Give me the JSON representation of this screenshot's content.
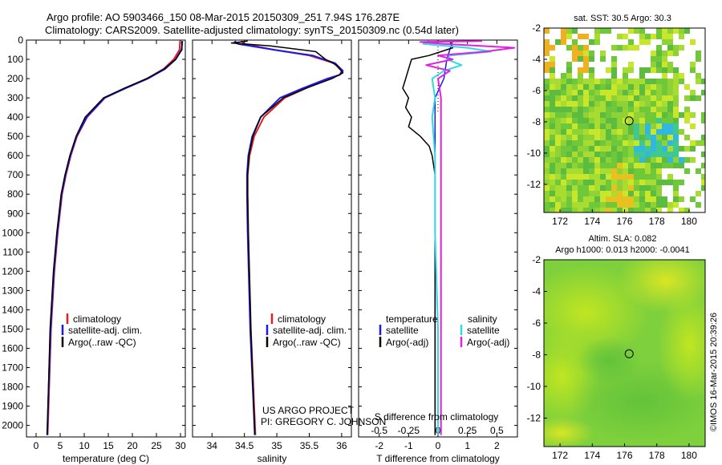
{
  "figure": {
    "title_line1": "Argo profile: AO 5903466_150 08-Mar-2015 20150309_251 7.94S 176.287E",
    "title_line2": "Climatology: CARS2009. Satellite-adjusted climatology: synTS_20150309.nc (0.54d later)",
    "credit": "©IMOS 16-Mar-2015 20:39:26",
    "project_line1": "US ARGO PROJECT",
    "project_line2": "PI: GREGORY C. JOHNSON"
  },
  "colors": {
    "climatology": "#e02020",
    "satellite": "#1a1aee",
    "argo": "#000000",
    "satellite_s": "#30d8e8",
    "argo_s": "#e020e0"
  },
  "chart_data": [
    {
      "type": "line",
      "name": "temperature",
      "xlabel": "temperature (deg C)",
      "ylabel": "",
      "xlim": [
        -2,
        31
      ],
      "ylim": [
        2060,
        0
      ],
      "xticks": [
        0,
        5,
        10,
        15,
        20,
        25,
        30
      ],
      "xtick_labels": [
        "0",
        "5",
        "10",
        "15",
        "20",
        "25",
        "30"
      ],
      "yticks": [
        0,
        100,
        200,
        300,
        400,
        500,
        600,
        700,
        800,
        900,
        1000,
        1100,
        1200,
        1300,
        1400,
        1500,
        1600,
        1700,
        1800,
        1900,
        2000
      ],
      "ytick_labels": [
        "0",
        "100",
        "200",
        "300",
        "400",
        "500",
        "600",
        "700",
        "800",
        "900",
        "1000",
        "1100",
        "1200",
        "1300",
        "1400",
        "1500",
        "1600",
        "1700",
        "1800",
        "1900",
        "2000"
      ],
      "legend": [
        "climatology",
        "satellite-adj. clim.",
        "Argo(..raw -QC)"
      ],
      "series": [
        {
          "name": "climatology",
          "pressure": [
            5,
            50,
            100,
            150,
            200,
            250,
            300,
            400,
            500,
            600,
            700,
            800,
            1000,
            1200,
            1500,
            2050
          ],
          "values": [
            29.9,
            29.8,
            28.6,
            26.5,
            23.0,
            18.5,
            14.3,
            10.6,
            8.5,
            7.2,
            6.2,
            5.4,
            4.5,
            3.8,
            3.1,
            2.4
          ]
        },
        {
          "name": "satellite",
          "pressure": [
            5,
            50,
            100,
            150,
            200,
            250,
            300,
            400,
            500,
            600,
            700,
            800,
            1000,
            1200,
            1500,
            2050
          ],
          "values": [
            30.4,
            30.2,
            29.0,
            26.8,
            23.2,
            18.6,
            14.2,
            10.5,
            8.4,
            7.1,
            6.1,
            5.3,
            4.4,
            3.7,
            3.0,
            2.3
          ]
        },
        {
          "name": "argo",
          "pressure": [
            5,
            50,
            100,
            150,
            200,
            250,
            300,
            400,
            500,
            600,
            700,
            800,
            1000,
            1200,
            1500,
            2050
          ],
          "values": [
            30.3,
            30.3,
            29.0,
            26.6,
            23.0,
            18.3,
            14.0,
            10.2,
            8.3,
            7.0,
            6.0,
            5.2,
            4.3,
            3.6,
            2.9,
            2.3
          ]
        }
      ]
    },
    {
      "type": "line",
      "name": "salinity",
      "xlabel": "salinity",
      "ylabel": "",
      "xlim": [
        33.7,
        36.15
      ],
      "ylim": [
        2060,
        0
      ],
      "xticks": [
        34,
        34.5,
        35,
        35.5,
        36
      ],
      "xtick_labels": [
        "34",
        "34.5",
        "35",
        "35.5",
        "36"
      ],
      "legend": [
        "climatology",
        "satellite-adj. clim.",
        "Argo(..raw -QC)"
      ],
      "series": [
        {
          "name": "climatology",
          "pressure": [
            5,
            20,
            50,
            80,
            120,
            160,
            180,
            200,
            250,
            300,
            400,
            500,
            600,
            700,
            800,
            1000,
            1500,
            2050
          ],
          "values": [
            34.45,
            34.5,
            34.95,
            35.5,
            35.88,
            36.0,
            35.97,
            35.8,
            35.45,
            35.12,
            34.8,
            34.65,
            34.58,
            34.55,
            34.55,
            34.56,
            34.6,
            34.67
          ]
        },
        {
          "name": "satellite",
          "pressure": [
            5,
            20,
            50,
            80,
            120,
            160,
            180,
            200,
            250,
            300,
            400,
            500,
            600,
            700,
            800,
            1000,
            1500,
            2050
          ],
          "values": [
            34.35,
            34.4,
            34.95,
            35.55,
            35.9,
            36.02,
            35.97,
            35.78,
            35.4,
            35.05,
            34.75,
            34.62,
            34.56,
            34.54,
            34.54,
            34.55,
            34.59,
            34.66
          ]
        },
        {
          "name": "argo",
          "pressure": [
            5,
            15,
            30,
            60,
            100,
            130,
            170,
            200,
            250,
            300,
            400,
            500,
            600,
            700,
            800,
            1000,
            1500,
            2050
          ],
          "values": [
            34.55,
            34.3,
            34.9,
            35.6,
            35.75,
            35.92,
            36.02,
            35.85,
            35.45,
            35.1,
            34.75,
            34.63,
            34.57,
            34.55,
            34.55,
            34.56,
            34.6,
            34.66
          ]
        }
      ]
    },
    {
      "type": "line",
      "name": "difference",
      "xlabel": "T difference from climatology",
      "top_xlabel": "S difference from climatology",
      "xlim": [
        -2.7,
        2.7
      ],
      "ylim": [
        2060,
        0
      ],
      "xticks": [
        -2,
        -1,
        0,
        1,
        2
      ],
      "xtick_labels": [
        "-2",
        "-1",
        "0",
        "1",
        "2"
      ],
      "s_xticks": [
        -2,
        -1,
        0,
        1,
        2
      ],
      "s_xtick_labels": [
        "-0.5",
        "-0.25",
        "0",
        "0.25",
        "0.5"
      ],
      "legend_t_title": "temperature",
      "legend_s_title": "salinity",
      "legend": [
        "satellite",
        "Argo(-adj)",
        "satellite",
        "Argo(-adj)"
      ],
      "series": [
        {
          "name": "T satellite",
          "pressure": [
            5,
            50,
            100,
            200,
            300,
            400,
            500,
            600,
            800,
            1000,
            1500,
            2050
          ],
          "values": [
            0.5,
            0.4,
            0.3,
            0.2,
            -0.1,
            -0.1,
            -0.1,
            -0.1,
            -0.1,
            -0.1,
            -0.1,
            -0.1
          ]
        },
        {
          "name": "T argo",
          "pressure": [
            5,
            40,
            80,
            100,
            150,
            200,
            250,
            300,
            350,
            400,
            450,
            500,
            550,
            600,
            700,
            800,
            1000,
            1500,
            2050
          ],
          "values": [
            0.4,
            0.5,
            -0.3,
            -0.9,
            -1.0,
            -1.1,
            -1.2,
            -1.0,
            -1.1,
            -0.9,
            -1.0,
            -0.6,
            -0.3,
            -0.2,
            -0.1,
            -0.1,
            -0.1,
            -0.1,
            -0.1
          ]
        },
        {
          "name": "S satellite",
          "pressure": [
            5,
            20,
            40,
            60,
            80,
            100,
            130,
            160,
            200,
            300,
            400,
            600,
            800,
            1000,
            1500,
            2050
          ],
          "values": [
            -0.3,
            -0.5,
            1.0,
            1.8,
            0.4,
            0.3,
            0.8,
            0.2,
            -0.2,
            -0.1,
            -0.2,
            -0.1,
            -0.1,
            -0.1,
            0.0,
            0.0
          ]
        },
        {
          "name": "S argo",
          "pressure": [
            5,
            10,
            20,
            40,
            60,
            80,
            100,
            130,
            160,
            200,
            300,
            400,
            600,
            800,
            1000,
            1500,
            2050
          ],
          "values": [
            1.5,
            -0.6,
            0.2,
            2.6,
            1.6,
            0.0,
            0.5,
            -0.4,
            0.4,
            0.0,
            0.1,
            0.1,
            0.1,
            0.1,
            0.1,
            0.1,
            0.1
          ]
        }
      ]
    },
    {
      "type": "heatmap",
      "name": "sst map",
      "title": "sat. SST: 30.5  Argo: 30.3",
      "xlim": [
        171,
        181
      ],
      "ylim": [
        -13.8,
        -2
      ],
      "xticks": [
        172,
        174,
        176,
        178,
        180
      ],
      "xtick_labels": [
        "172",
        "174",
        "176",
        "178",
        "180"
      ],
      "yticks": [
        -2,
        -4,
        -6,
        -8,
        -10,
        -12
      ],
      "ytick_labels": [
        "-2",
        "-4",
        "-6",
        "-8",
        "-10",
        "-12"
      ],
      "float_position": [
        176.287,
        -7.94
      ]
    },
    {
      "type": "heatmap",
      "name": "altimetry map",
      "title": "Altim. SLA: 0.082",
      "subtitle": "Argo h1000: 0.013  h2000: -0.0041",
      "xlim": [
        171,
        181
      ],
      "ylim": [
        -13.8,
        -2
      ],
      "xticks": [
        172,
        174,
        176,
        178,
        180
      ],
      "xtick_labels": [
        "172",
        "174",
        "176",
        "178",
        "180"
      ],
      "yticks": [
        -2,
        -4,
        -6,
        -8,
        -10,
        -12
      ],
      "ytick_labels": [
        "-2",
        "-4",
        "-6",
        "-8",
        "-10",
        "-12"
      ],
      "float_position": [
        176.287,
        -7.94
      ]
    }
  ]
}
